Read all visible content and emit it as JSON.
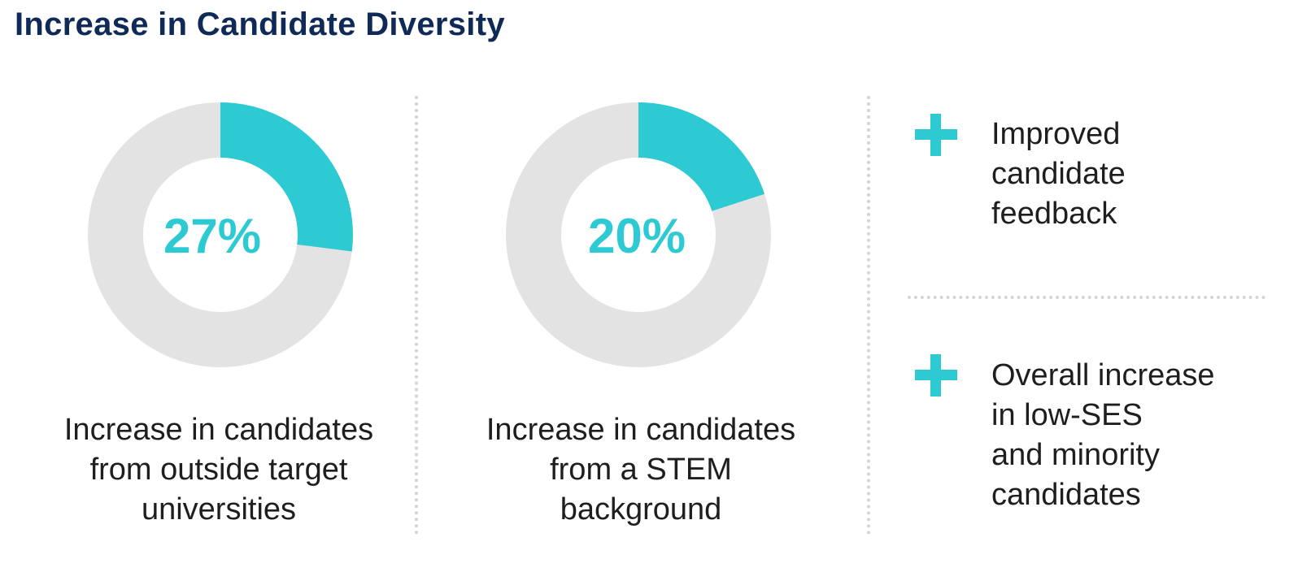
{
  "title": "Increase in Candidate Diversity",
  "colors": {
    "title": "#0f2a56",
    "accent": "#2ecad4",
    "track": "#e3e3e3",
    "text": "#1e1e1e",
    "divider": "#d4d4d4"
  },
  "chart_data": [
    {
      "type": "pie",
      "variant": "donut",
      "value_percent": 27,
      "center_label": "27%",
      "caption_lines": [
        "Increase in candidates",
        "from outside target",
        "universities"
      ]
    },
    {
      "type": "pie",
      "variant": "donut",
      "value_percent": 20,
      "center_label": "20%",
      "caption_lines": [
        "Increase in candidates",
        "from a STEM",
        "background"
      ]
    }
  ],
  "bullets": [
    {
      "icon": "plus-icon",
      "lines": [
        "Improved",
        "candidate",
        "feedback"
      ]
    },
    {
      "icon": "plus-icon",
      "lines": [
        "Overall increase",
        "in low-SES",
        "and minority",
        "candidates"
      ]
    }
  ]
}
